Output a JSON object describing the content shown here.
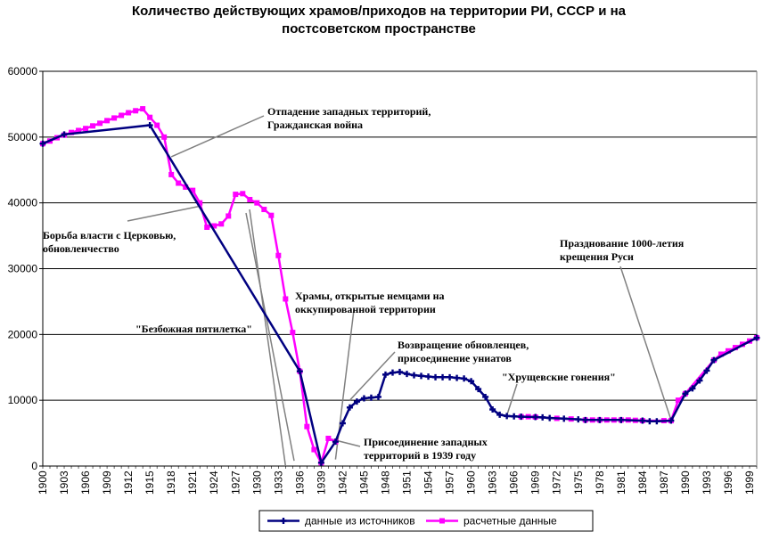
{
  "chart_data": {
    "type": "line",
    "title_lines": [
      "Количество действующих храмов/приходов на территории РИ, СССР и на",
      "постсоветском пространстве"
    ],
    "xlabel": "",
    "ylabel": "",
    "ylim": [
      0,
      60000
    ],
    "xlim": [
      1900,
      2000
    ],
    "y_ticks": [
      0,
      10000,
      20000,
      30000,
      40000,
      50000,
      60000
    ],
    "x_ticks": [
      1900,
      1903,
      1906,
      1909,
      1912,
      1915,
      1918,
      1921,
      1924,
      1927,
      1930,
      1933,
      1936,
      1939,
      1942,
      1945,
      1948,
      1951,
      1954,
      1957,
      1960,
      1963,
      1966,
      1969,
      1972,
      1975,
      1978,
      1981,
      1984,
      1987,
      1990,
      1993,
      1996,
      1999
    ],
    "grid": "horizontal",
    "legend_position": "bottom",
    "colors": {
      "source": "#000080",
      "estimated": "#ff00ff",
      "grid": "#000000",
      "annotation_line": "#808080"
    },
    "series": [
      {
        "name": "данные из источников",
        "points": [
          [
            1900,
            49000
          ],
          [
            1903,
            50400
          ],
          [
            1915,
            51800
          ],
          [
            1936,
            14400
          ],
          [
            1939,
            500
          ],
          [
            1941,
            3700
          ],
          [
            1942,
            6500
          ],
          [
            1943,
            8900
          ],
          [
            1944,
            9800
          ],
          [
            1945,
            10300
          ],
          [
            1946,
            10400
          ],
          [
            1947,
            10500
          ],
          [
            1948,
            13900
          ],
          [
            1949,
            14200
          ],
          [
            1950,
            14300
          ],
          [
            1951,
            14000
          ],
          [
            1952,
            13800
          ],
          [
            1953,
            13700
          ],
          [
            1954,
            13600
          ],
          [
            1955,
            13500
          ],
          [
            1956,
            13500
          ],
          [
            1957,
            13500
          ],
          [
            1958,
            13400
          ],
          [
            1959,
            13300
          ],
          [
            1960,
            12900
          ],
          [
            1961,
            11700
          ],
          [
            1962,
            10500
          ],
          [
            1963,
            8600
          ],
          [
            1964,
            7800
          ],
          [
            1965,
            7600
          ],
          [
            1966,
            7550
          ],
          [
            1967,
            7500
          ],
          [
            1969,
            7450
          ],
          [
            1970,
            7400
          ],
          [
            1971,
            7300
          ],
          [
            1973,
            7200
          ],
          [
            1975,
            7100
          ],
          [
            1976,
            7000
          ],
          [
            1978,
            7000
          ],
          [
            1981,
            7000
          ],
          [
            1984,
            6900
          ],
          [
            1985,
            6800
          ],
          [
            1986,
            6800
          ],
          [
            1988,
            6900
          ],
          [
            1990,
            11000
          ],
          [
            1991,
            11800
          ],
          [
            1992,
            13000
          ],
          [
            1993,
            14500
          ],
          [
            1994,
            16100
          ],
          [
            2000,
            19500
          ]
        ]
      },
      {
        "name": "расчетные данные",
        "points": [
          [
            1900,
            49000
          ],
          [
            1901,
            49400
          ],
          [
            1902,
            49900
          ],
          [
            1903,
            50300
          ],
          [
            1904,
            50700
          ],
          [
            1905,
            51000
          ],
          [
            1906,
            51300
          ],
          [
            1907,
            51700
          ],
          [
            1908,
            52100
          ],
          [
            1909,
            52500
          ],
          [
            1910,
            52900
          ],
          [
            1911,
            53300
          ],
          [
            1912,
            53700
          ],
          [
            1913,
            54000
          ],
          [
            1914,
            54300
          ],
          [
            1915,
            53000
          ],
          [
            1916,
            51800
          ],
          [
            1917,
            50000
          ],
          [
            1918,
            44300
          ],
          [
            1919,
            43000
          ],
          [
            1920,
            42400
          ],
          [
            1921,
            41900
          ],
          [
            1922,
            40000
          ],
          [
            1923,
            36300
          ],
          [
            1924,
            36500
          ],
          [
            1925,
            36800
          ],
          [
            1926,
            38000
          ],
          [
            1927,
            41300
          ],
          [
            1928,
            41400
          ],
          [
            1929,
            40500
          ],
          [
            1930,
            40000
          ],
          [
            1931,
            39000
          ],
          [
            1932,
            38100
          ],
          [
            1933,
            32000
          ],
          [
            1934,
            25400
          ],
          [
            1935,
            20300
          ],
          [
            1936,
            14400
          ],
          [
            1937,
            6000
          ],
          [
            1938,
            2500
          ],
          [
            1939,
            500
          ],
          [
            1940,
            4200
          ],
          [
            1941,
            3700
          ],
          [
            1967,
            7500
          ],
          [
            1968,
            7500
          ],
          [
            1969,
            7450
          ],
          [
            1972,
            7250
          ],
          [
            1974,
            7150
          ],
          [
            1976,
            7000
          ],
          [
            1977,
            7000
          ],
          [
            1978,
            7000
          ],
          [
            1979,
            7000
          ],
          [
            1980,
            7000
          ],
          [
            1981,
            7000
          ],
          [
            1982,
            7000
          ],
          [
            1983,
            6950
          ],
          [
            1984,
            6900
          ],
          [
            1987,
            6900
          ],
          [
            1988,
            6900
          ],
          [
            1989,
            10000
          ],
          [
            1990,
            11000
          ],
          [
            1994,
            16100
          ],
          [
            1995,
            17000
          ],
          [
            1996,
            17500
          ],
          [
            1997,
            18000
          ],
          [
            1998,
            18500
          ],
          [
            1999,
            19000
          ],
          [
            2000,
            19500
          ]
        ]
      }
    ],
    "annotations": [
      {
        "lines": [
          "Отпадение западных территорий,",
          "Гражданская война"
        ],
        "target": [
          1918,
          47000
        ]
      },
      {
        "lines": [
          "Борьба власти с Церковью,",
          "обновленчество"
        ],
        "target": [
          1922,
          39500
        ]
      },
      {
        "lines": [
          "\"Безбожная пятилетка\""
        ],
        "target": [
          1934,
          0
        ]
      },
      {
        "lines": [
          "Храмы, открытые немцами на",
          "оккупированной    территории"
        ],
        "target": [
          1941,
          1000
        ]
      },
      {
        "lines": [
          "Возвращение обновленцев,",
          "присоединение униатов"
        ],
        "target": [
          1943,
          10000
        ]
      },
      {
        "lines": [
          "\"Хрущевские гонения\""
        ],
        "target": [
          1965,
          7700
        ]
      },
      {
        "lines": [
          "Присоединение западных",
          "территорий  в  1939  году"
        ],
        "target": [
          1940,
          4200
        ]
      },
      {
        "lines": [
          "Празднование 1000-летия",
          "крещения Руси"
        ],
        "target": [
          1988,
          7000
        ]
      }
    ]
  }
}
